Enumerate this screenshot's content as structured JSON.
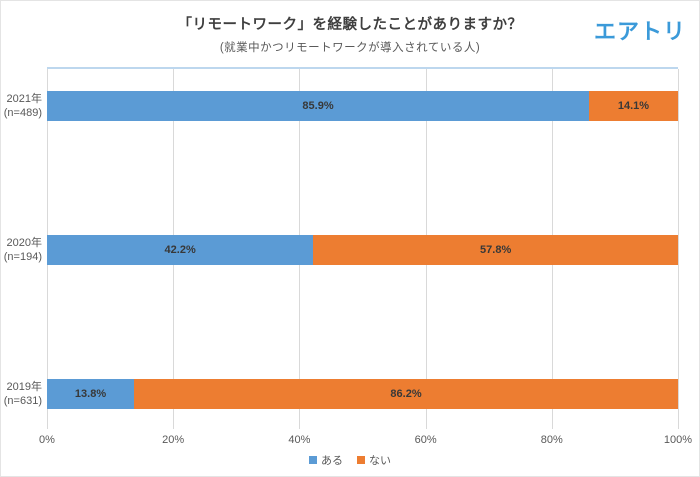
{
  "header": {
    "title": "「リモートワーク」を経験したことがありますか？",
    "subtitle": "(就業中かつリモートワークが導入されている人)",
    "logo": "エアトリ"
  },
  "chart_data": {
    "type": "bar",
    "orientation": "horizontal",
    "stacked": true,
    "title": "「リモートワーク」を経験したことがありますか？",
    "subtitle": "(就業中かつリモートワークが導入されている人)",
    "categories": [
      "2021年",
      "2020年",
      "2019年"
    ],
    "category_sublabels": [
      "(n=489)",
      "(n=194)",
      "(n=631)"
    ],
    "series": [
      {
        "name": "ある",
        "color": "#5b9bd5",
        "values": [
          85.9,
          42.2,
          13.8
        ]
      },
      {
        "name": "ない",
        "color": "#ed7d31",
        "values": [
          14.1,
          57.8,
          86.2
        ]
      }
    ],
    "x_ticks": [
      "0%",
      "20%",
      "40%",
      "60%",
      "80%",
      "100%"
    ],
    "xlim": [
      0,
      100
    ],
    "value_suffix": "%",
    "grid": true,
    "legend_position": "bottom"
  },
  "colors": {
    "bar_blue": "#5b9bd5",
    "bar_orange": "#ed7d31",
    "gridline": "#d9d9d9",
    "plot_top_border": "#bdd7ee",
    "title_text": "#3f3f3f",
    "axis_text": "#595959",
    "logo_blue": "#3b9ad9"
  }
}
